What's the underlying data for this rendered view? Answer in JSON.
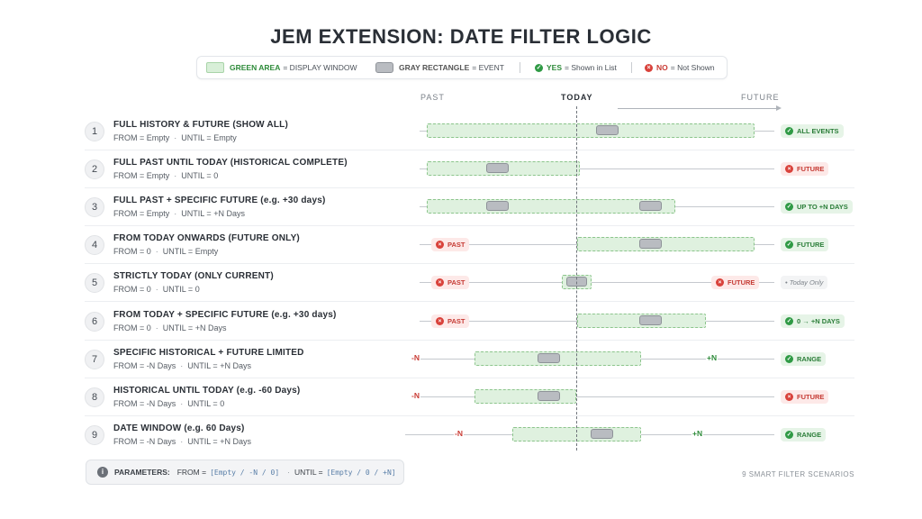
{
  "title": "JEM EXTENSION: DATE FILTER LOGIC",
  "legend": {
    "green_key": "GREEN AREA",
    "green_desc": "= DISPLAY WINDOW",
    "gray_key": "GRAY RECTANGLE",
    "gray_desc": "= EVENT",
    "yes_key": "YES",
    "yes_desc": "= Shown in List",
    "no_key": "NO",
    "no_desc": "= Not Shown"
  },
  "axis": {
    "past": "PAST",
    "today": "TODAY",
    "future": "FUTURE"
  },
  "rows": [
    {
      "num": "1",
      "title": "FULL HISTORY & FUTURE (SHOW ALL)",
      "from": "FROM = Empty",
      "until": "UNTIL = Empty",
      "result": "ALL EVENTS",
      "result_type": "good"
    },
    {
      "num": "2",
      "title": "FULL PAST UNTIL TODAY (HISTORICAL COMPLETE)",
      "from": "FROM = Empty",
      "until": "UNTIL = 0",
      "result": "FUTURE",
      "result_type": "bad"
    },
    {
      "num": "3",
      "title": "FULL PAST + SPECIFIC FUTURE (e.g. +30 days)",
      "from": "FROM = Empty",
      "until": "UNTIL = +N Days",
      "result": "UP TO +N DAYS",
      "result_type": "good"
    },
    {
      "num": "4",
      "title": "FROM TODAY ONWARDS (FUTURE ONLY)",
      "from": "FROM = 0",
      "until": "UNTIL = Empty",
      "result": "FUTURE",
      "result_type": "good",
      "left_chip": "PAST"
    },
    {
      "num": "5",
      "title": "STRICTLY TODAY (ONLY CURRENT)",
      "from": "FROM = 0",
      "until": "UNTIL = 0",
      "result": "• Today Only",
      "result_type": "muted",
      "left_chip": "PAST",
      "right_chip": "FUTURE"
    },
    {
      "num": "6",
      "title": "FROM TODAY + SPECIFIC FUTURE (e.g. +30 days)",
      "from": "FROM = 0",
      "until": "UNTIL = +N Days",
      "result": "0 → +N DAYS",
      "result_type": "good",
      "left_chip": "PAST"
    },
    {
      "num": "7",
      "title": "SPECIFIC HISTORICAL + FUTURE LIMITED",
      "from": "FROM = -N Days",
      "until": "UNTIL = +N Days",
      "result": "RANGE",
      "result_type": "good",
      "left_edge": "-N",
      "right_edge": "+N"
    },
    {
      "num": "8",
      "title": "HISTORICAL UNTIL TODAY (e.g. -60 Days)",
      "from": "FROM = -N Days",
      "until": "UNTIL = 0",
      "result": "FUTURE",
      "result_type": "bad",
      "left_edge": "-N"
    },
    {
      "num": "9",
      "title": "DATE WINDOW (e.g. 60 Days)",
      "from": "FROM = -N Days",
      "until": "UNTIL = +N Days",
      "result": "RANGE",
      "result_type": "good",
      "left_edge": "-N",
      "right_edge": "+N"
    }
  ],
  "params": {
    "label": "PARAMETERS:",
    "from_label": "FROM =",
    "from_values": "[Empty / -N / 0]",
    "until_label": "UNTIL =",
    "until_values": "[Empty / 0 / +N]"
  },
  "footer": "9 SMART FILTER SCENARIOS",
  "colors": {
    "window_fill": "#dff1df",
    "window_border": "#8cc58c",
    "event": "#b9bcc1",
    "yes": "#2f9a45",
    "no": "#d9423b"
  },
  "icons": {
    "yes": "check-circle-icon",
    "no": "x-circle-icon",
    "info": "info-icon",
    "arrow": "arrow-right-icon"
  }
}
